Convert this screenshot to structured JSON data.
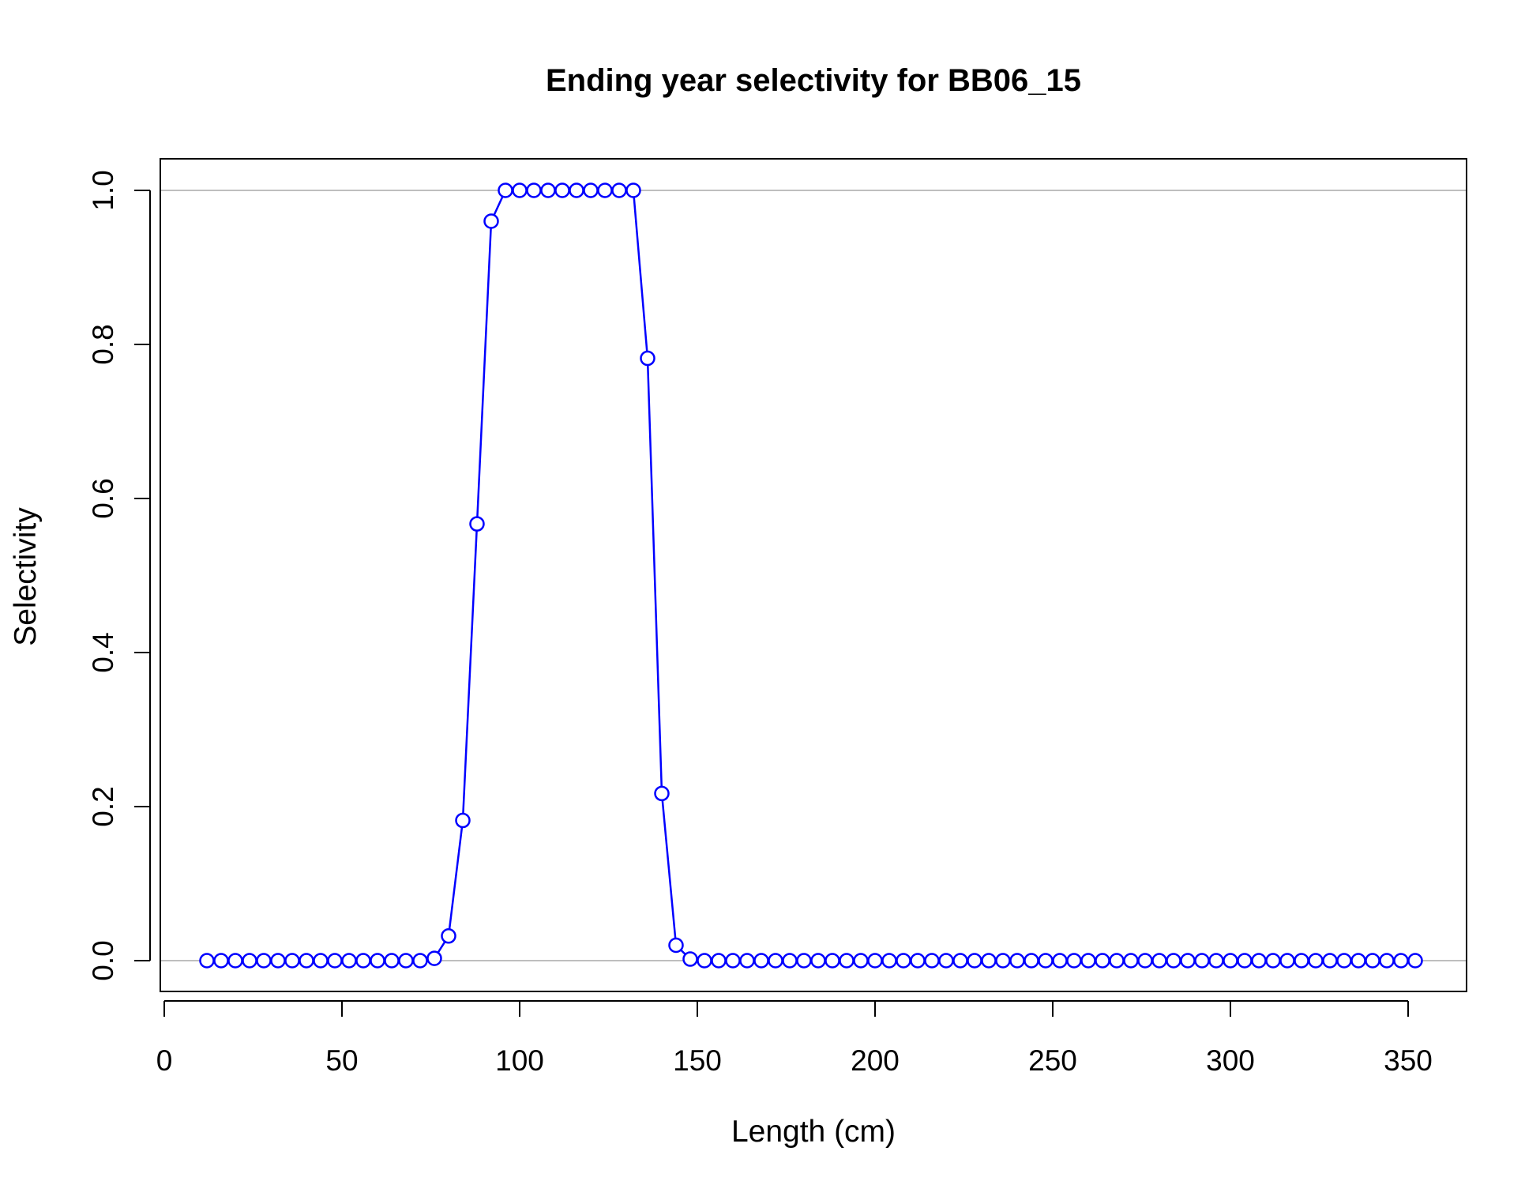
{
  "chart_data": {
    "type": "line",
    "title": "Ending year selectivity for BB06_15",
    "xlabel": "Length (cm)",
    "ylabel": "Selectivity",
    "xlim": [
      0,
      350
    ],
    "ylim": [
      0,
      1
    ],
    "x_ticks": [
      0,
      50,
      100,
      150,
      200,
      250,
      300,
      350
    ],
    "y_ticks": [
      0,
      0.2,
      0.4,
      0.6,
      0.8,
      1.0
    ],
    "x_tick_labels": [
      "0",
      "50",
      "100",
      "150",
      "200",
      "250",
      "300",
      "350"
    ],
    "y_tick_labels": [
      "0.0",
      "0.2",
      "0.4",
      "0.6",
      "0.8",
      "1.0"
    ],
    "reference_lines": [
      0,
      1
    ],
    "reference_line_color": "#bebebe",
    "series_color": "#0000ff",
    "markers": "open-circle",
    "grid": false,
    "series": [
      {
        "x": [
          12,
          16,
          20,
          24,
          28,
          32,
          36,
          40,
          44,
          48,
          52,
          56,
          60,
          64,
          68,
          72,
          76,
          80,
          84,
          88,
          92,
          96,
          100,
          104,
          108,
          112,
          116,
          120,
          124,
          128,
          132,
          136,
          140,
          144,
          148,
          152,
          156,
          160,
          164,
          168,
          172,
          176,
          180,
          184,
          188,
          192,
          196,
          200,
          204,
          208,
          212,
          216,
          220,
          224,
          228,
          232,
          236,
          240,
          244,
          248,
          252,
          256,
          260,
          264,
          268,
          272,
          276,
          280,
          284,
          288,
          292,
          296,
          300,
          304,
          308,
          312,
          316,
          320,
          324,
          328,
          332,
          336,
          340,
          344,
          348,
          352
        ],
        "values": [
          0,
          0,
          0,
          0,
          0,
          0,
          0,
          0,
          0,
          0,
          0,
          0,
          0,
          0,
          0,
          0,
          0.003,
          0.032,
          0.182,
          0.567,
          0.96,
          1,
          1,
          1,
          1,
          1,
          1,
          1,
          1,
          1,
          1,
          0.782,
          0.217,
          0.02,
          0.002,
          0,
          0,
          0,
          0,
          0,
          0,
          0,
          0,
          0,
          0,
          0,
          0,
          0,
          0,
          0,
          0,
          0,
          0,
          0,
          0,
          0,
          0,
          0,
          0,
          0,
          0,
          0,
          0,
          0,
          0,
          0,
          0,
          0,
          0,
          0,
          0,
          0,
          0,
          0,
          0,
          0,
          0,
          0,
          0,
          0,
          0,
          0,
          0,
          0,
          0,
          0
        ]
      }
    ]
  }
}
